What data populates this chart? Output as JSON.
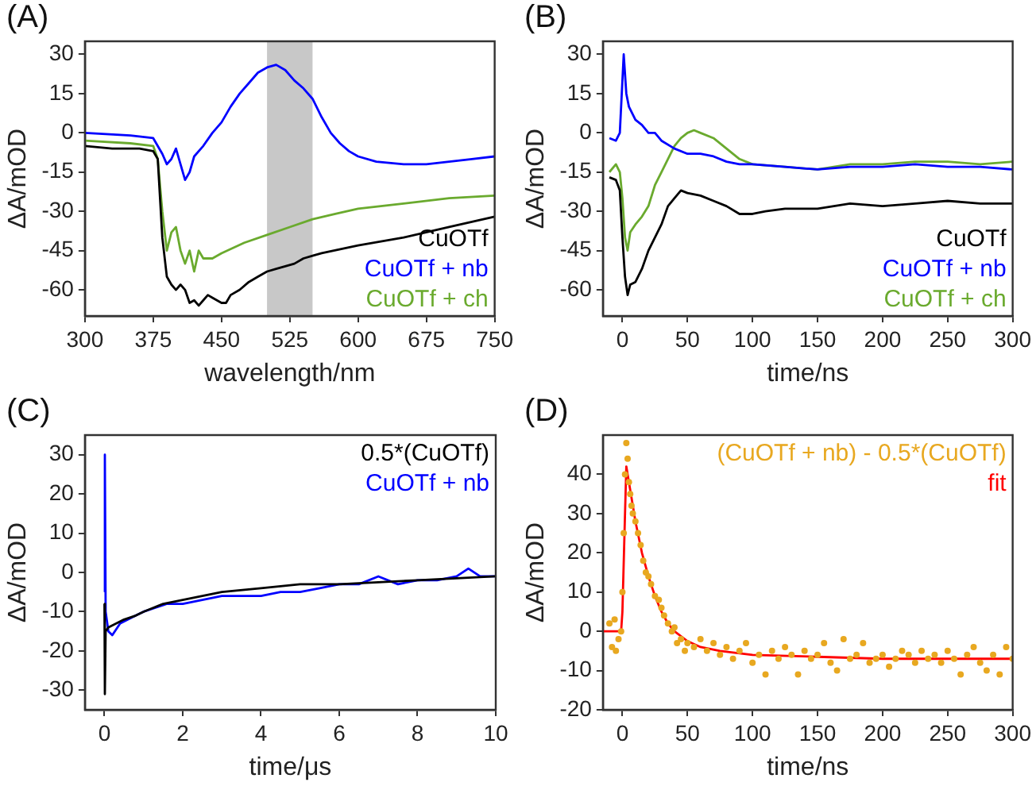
{
  "chart_data": [
    {
      "type": "line",
      "title": "(A)",
      "xlabel": "wavelength/nm",
      "ylabel": "ΔA/mOD",
      "xlim": [
        300,
        750
      ],
      "xticks": [
        300,
        375,
        450,
        525,
        600,
        675,
        750
      ],
      "ylim": [
        -70,
        35
      ],
      "yticks": [
        -60,
        -45,
        -30,
        -15,
        0,
        15,
        30
      ],
      "legend": "bottom right",
      "bands": [
        {
          "axis": "x",
          "from": 500,
          "to": 550,
          "color": "#c8c8c8"
        }
      ],
      "series": [
        {
          "name": "CuOTf",
          "color": "#000000",
          "x": [
            300,
            330,
            360,
            375,
            380,
            385,
            390,
            395,
            400,
            405,
            410,
            415,
            420,
            425,
            430,
            435,
            440,
            450,
            455,
            460,
            470,
            480,
            490,
            500,
            510,
            520,
            530,
            540,
            550,
            560,
            600,
            650,
            700,
            750
          ],
          "values": [
            -5,
            -6,
            -6,
            -7,
            -10,
            -40,
            -55,
            -58,
            -60,
            -58,
            -60,
            -65,
            -64,
            -66,
            -64,
            -62,
            -63,
            -65,
            -65,
            -62,
            -60,
            -57,
            -55,
            -53,
            -52,
            -51,
            -50,
            -48,
            -47,
            -46,
            -43,
            -40,
            -36,
            -32
          ]
        },
        {
          "name": "CuOTf + nb",
          "color": "#0000ff",
          "x": [
            300,
            350,
            375,
            385,
            390,
            395,
            400,
            405,
            410,
            415,
            420,
            430,
            440,
            450,
            460,
            470,
            480,
            490,
            500,
            510,
            520,
            530,
            540,
            550,
            560,
            570,
            580,
            590,
            600,
            620,
            650,
            675,
            700,
            725,
            750
          ],
          "values": [
            0,
            -1,
            -2,
            -8,
            -12,
            -10,
            -6,
            -12,
            -18,
            -15,
            -9,
            -5,
            0,
            4,
            10,
            15,
            19,
            23,
            25,
            26,
            24,
            20,
            17,
            13,
            6,
            0,
            -4,
            -7,
            -9,
            -11,
            -12,
            -12,
            -11,
            -10,
            -9
          ]
        },
        {
          "name": "CuOTf + ch",
          "color": "#6aaa2e",
          "x": [
            300,
            350,
            375,
            380,
            385,
            390,
            395,
            400,
            405,
            410,
            415,
            420,
            425,
            430,
            440,
            450,
            475,
            500,
            525,
            550,
            575,
            600,
            650,
            700,
            750
          ],
          "values": [
            -3,
            -4,
            -5,
            -10,
            -30,
            -45,
            -38,
            -36,
            -45,
            -50,
            -45,
            -53,
            -45,
            -48,
            -48,
            -46,
            -42,
            -39,
            -36,
            -33,
            -31,
            -29,
            -27,
            -25,
            -24
          ]
        }
      ]
    },
    {
      "type": "line",
      "title": "(B)",
      "xlabel": "time/ns",
      "ylabel": "ΔA/mOD",
      "xlim": [
        -15,
        300
      ],
      "xticks": [
        0,
        50,
        100,
        150,
        200,
        250,
        300
      ],
      "ylim": [
        -70,
        35
      ],
      "yticks": [
        -60,
        -45,
        -30,
        -15,
        0,
        15,
        30
      ],
      "legend": "bottom right",
      "series": [
        {
          "name": "CuOTf",
          "color": "#000000",
          "x": [
            -10,
            -5,
            -2,
            0,
            2,
            4,
            6,
            10,
            15,
            20,
            25,
            30,
            35,
            40,
            45,
            50,
            60,
            70,
            80,
            90,
            100,
            110,
            125,
            150,
            175,
            200,
            225,
            250,
            275,
            300
          ],
          "values": [
            -17,
            -18,
            -22,
            -40,
            -55,
            -62,
            -58,
            -57,
            -52,
            -45,
            -40,
            -35,
            -28,
            -25,
            -22,
            -23,
            -24,
            -26,
            -28,
            -31,
            -31,
            -30,
            -29,
            -29,
            -27,
            -28,
            -27,
            -26,
            -27,
            -27
          ]
        },
        {
          "name": "CuOTf + nb",
          "color": "#0000ff",
          "x": [
            -10,
            -5,
            -2,
            0,
            1,
            3,
            5,
            10,
            15,
            20,
            25,
            30,
            40,
            50,
            60,
            70,
            80,
            90,
            100,
            125,
            150,
            175,
            200,
            225,
            250,
            275,
            300
          ],
          "values": [
            -2,
            -3,
            0,
            20,
            30,
            15,
            10,
            5,
            3,
            0,
            0,
            -3,
            -6,
            -8,
            -8,
            -9,
            -11,
            -12,
            -12,
            -13,
            -14,
            -13,
            -13,
            -12,
            -13,
            -13,
            -14
          ]
        },
        {
          "name": "CuOTf + ch",
          "color": "#6aaa2e",
          "x": [
            -10,
            -5,
            -2,
            0,
            2,
            4,
            6,
            10,
            15,
            20,
            25,
            30,
            35,
            40,
            45,
            50,
            55,
            60,
            70,
            80,
            90,
            100,
            125,
            150,
            175,
            200,
            225,
            250,
            275,
            300
          ],
          "values": [
            -15,
            -12,
            -15,
            -25,
            -40,
            -45,
            -38,
            -35,
            -32,
            -28,
            -20,
            -15,
            -10,
            -5,
            -2,
            0,
            1,
            0,
            -2,
            -6,
            -10,
            -12,
            -13,
            -14,
            -12,
            -12,
            -11,
            -11,
            -12,
            -11
          ]
        }
      ]
    },
    {
      "type": "line",
      "title": "(C)",
      "xlabel": "time/μs",
      "ylabel": "ΔA/mOD",
      "xlim": [
        -0.5,
        10
      ],
      "xticks": [
        0,
        2,
        4,
        6,
        8,
        10
      ],
      "ylim": [
        -35,
        35
      ],
      "yticks": [
        -30,
        -20,
        -10,
        0,
        10,
        20,
        30
      ],
      "legend": "top right",
      "series": [
        {
          "name": "0.5*(CuOTf)",
          "color": "#000000",
          "x": [
            0,
            0.01,
            0.03,
            0.1,
            0.3,
            0.5,
            0.8,
            1,
            1.5,
            2,
            2.5,
            3,
            4,
            5,
            6,
            7,
            8,
            9,
            10
          ],
          "values": [
            -8,
            -31,
            -15,
            -14,
            -13,
            -12,
            -11,
            -10,
            -8,
            -7,
            -6,
            -5,
            -4,
            -3,
            -3,
            -2.5,
            -2,
            -1.5,
            -1
          ]
        },
        {
          "name": "CuOTf + nb",
          "color": "#0000ff",
          "x": [
            0,
            0.01,
            0.03,
            0.1,
            0.2,
            0.4,
            0.6,
            0.8,
            1,
            1.3,
            1.6,
            2,
            2.5,
            3,
            3.5,
            4,
            4.5,
            5,
            5.5,
            6,
            6.5,
            7,
            7.5,
            8,
            8.5,
            9,
            9.3,
            9.6,
            10
          ],
          "values": [
            -5,
            30,
            -10,
            -15,
            -16,
            -13,
            -12,
            -11,
            -10,
            -9,
            -8,
            -8,
            -7,
            -6,
            -6,
            -6,
            -5,
            -5,
            -4,
            -3,
            -3,
            -1,
            -3,
            -2,
            -2,
            -1,
            1,
            -1,
            -1
          ]
        }
      ]
    },
    {
      "type": "scatter",
      "title": "(D)",
      "xlabel": "time/ns",
      "ylabel": "ΔA/mOD",
      "xlim": [
        -15,
        300
      ],
      "xticks": [
        0,
        50,
        100,
        150,
        200,
        250,
        300
      ],
      "ylim": [
        -20,
        50
      ],
      "yticks": [
        -20,
        -10,
        0,
        10,
        20,
        30,
        40
      ],
      "legend": "top right",
      "series": [
        {
          "name": "(CuOTf + nb) - 0.5*(CuOTf)",
          "color": "#e8a820",
          "marker": "circle",
          "x": [
            -10,
            -8,
            -6,
            -5,
            -3,
            -1,
            0,
            1,
            2,
            3,
            4,
            5,
            6,
            7,
            8,
            10,
            12,
            14,
            16,
            18,
            20,
            22,
            25,
            28,
            30,
            32,
            35,
            38,
            40,
            42,
            45,
            48,
            50,
            55,
            60,
            65,
            70,
            75,
            80,
            85,
            90,
            95,
            100,
            105,
            110,
            115,
            120,
            125,
            130,
            135,
            140,
            145,
            150,
            155,
            160,
            165,
            170,
            175,
            180,
            185,
            190,
            195,
            200,
            205,
            210,
            215,
            220,
            225,
            230,
            235,
            240,
            245,
            250,
            255,
            260,
            265,
            270,
            275,
            280,
            285,
            290,
            295,
            300
          ],
          "values": [
            2,
            -4,
            3,
            -5,
            -2,
            0,
            10,
            25,
            40,
            48,
            44,
            38,
            35,
            32,
            30,
            28,
            25,
            22,
            18,
            15,
            14,
            12,
            9,
            8,
            6,
            4,
            2,
            0,
            1,
            -3,
            -2,
            -5,
            -3,
            -4,
            -2,
            -5,
            -3,
            -6,
            -4,
            -7,
            -5,
            -3,
            -8,
            -6,
            -11,
            -5,
            -7,
            -4,
            -6,
            -11,
            -5,
            -7,
            -6,
            -3,
            -8,
            -10,
            -2,
            -7,
            -6,
            -3,
            -8,
            -7,
            -6,
            -9,
            -7,
            -5,
            -6,
            -8,
            -5,
            -7,
            -6,
            -8,
            -5,
            -7,
            -11,
            -6,
            -4,
            -8,
            -10,
            -6,
            -11,
            -4,
            -7
          ]
        },
        {
          "name": "fit",
          "type": "line",
          "color": "#ff0000",
          "x": [
            -15,
            -5,
            -1,
            0,
            2,
            3,
            5,
            10,
            15,
            20,
            25,
            30,
            35,
            40,
            50,
            60,
            75,
            100,
            150,
            200,
            300
          ],
          "values": [
            0,
            0,
            0,
            5,
            30,
            42,
            38,
            28,
            20,
            14,
            9,
            5,
            2,
            0,
            -2.5,
            -4,
            -5,
            -6,
            -6.5,
            -7,
            -7
          ]
        }
      ]
    }
  ]
}
